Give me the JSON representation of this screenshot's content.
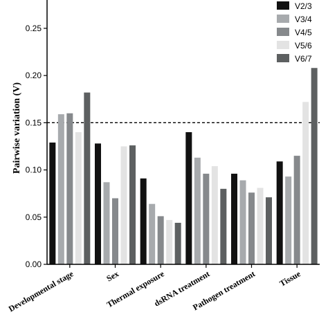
{
  "chart_data": {
    "type": "bar",
    "ylabel": "Pairwise variation (V)",
    "ylim": [
      0,
      0.28
    ],
    "yticks": [
      "0.00",
      "0.05",
      "0.10",
      "0.15",
      "0.20",
      "0.25"
    ],
    "reference_line": 0.15,
    "legend_position": "top-right",
    "categories": [
      "Developmental stage",
      "Sex",
      "Thermal exposure",
      "dsRNA treatment",
      "Pathogen treatment",
      "Tissue"
    ],
    "series": [
      {
        "name": "V2/3",
        "color": "#111111",
        "values": [
          0.129,
          0.128,
          0.091,
          0.14,
          0.096,
          0.109
        ]
      },
      {
        "name": "V3/4",
        "color": "#a7aaad",
        "values": [
          0.159,
          0.087,
          0.064,
          0.113,
          0.089,
          0.093
        ]
      },
      {
        "name": "V4/5",
        "color": "#86898c",
        "values": [
          0.16,
          0.07,
          0.051,
          0.096,
          0.076,
          0.115
        ]
      },
      {
        "name": "V5/6",
        "color": "#e3e3e3",
        "values": [
          0.14,
          0.125,
          0.047,
          0.104,
          0.081,
          0.172
        ]
      },
      {
        "name": "V6/7",
        "color": "#5d6061",
        "values": [
          0.182,
          0.126,
          0.044,
          0.08,
          0.071,
          0.208
        ]
      }
    ]
  }
}
